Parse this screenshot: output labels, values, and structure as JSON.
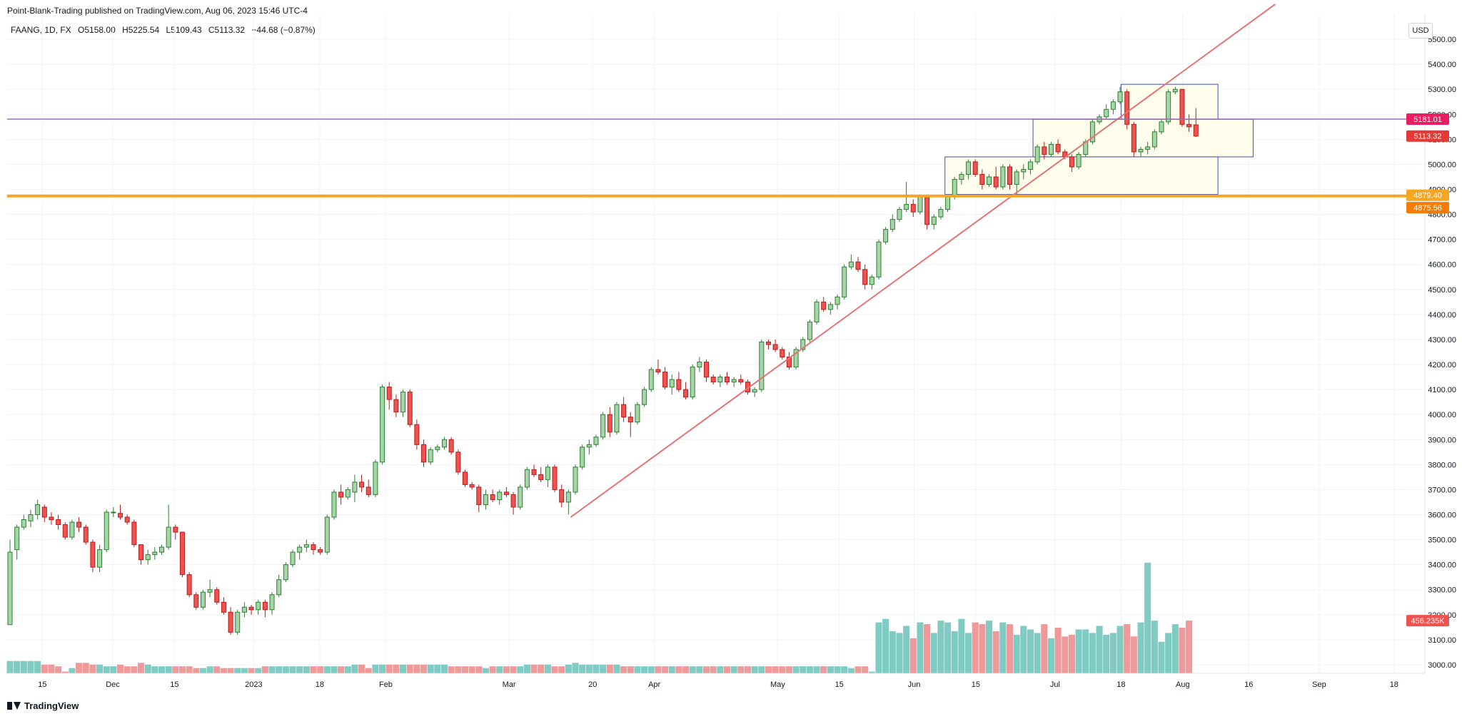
{
  "header": {
    "publisher_text": "Point-Blank-Trading published on TradingView.com, Aug 06, 2023 15:46 UTC-4"
  },
  "symbol": {
    "name": "FAANG, 1D, FX",
    "open": "O5158.00",
    "high": "H5225.54",
    "low": "L5109.43",
    "close": "C5113.32",
    "change": "−44.68 (−0.87%)"
  },
  "currency_label": "USD",
  "footer": {
    "brand": "TradingView"
  },
  "colors": {
    "up": "#2e7d32",
    "up_fill": "#a5d6a7",
    "down": "#b71c1c",
    "down_fill": "#ef5350",
    "vol_up": "#80cbc4",
    "vol_down": "#ef9a9a",
    "orange": "#f5a623",
    "purple": "#9c6fb5",
    "trendline": "#e57373",
    "box_border": "#3f51b5",
    "box_fill": "#fffde7"
  },
  "chart_data": {
    "type": "candlestick",
    "y_axis": {
      "range": [
        2920,
        5600
      ],
      "ticks": [
        "3000.00",
        "3100.00",
        "3200.00",
        "3300.00",
        "3400.00",
        "3500.00",
        "3600.00",
        "3700.00",
        "3800.00",
        "3900.00",
        "4000.00",
        "4100.00",
        "4200.00",
        "4300.00",
        "4400.00",
        "4500.00",
        "4600.00",
        "4700.00",
        "4800.00",
        "4900.00",
        "5000.00",
        "5100.00",
        "5200.00",
        "5300.00",
        "5400.00",
        "5500.00"
      ]
    },
    "x_axis": {
      "start": "2022-11-07",
      "end": "2023-09-25",
      "ticks": [
        {
          "date": "2022-11-15",
          "label": "15"
        },
        {
          "date": "2022-12-01",
          "label": "Dec"
        },
        {
          "date": "2022-12-15",
          "label": "15"
        },
        {
          "date": "2023-01-02",
          "label": "2023"
        },
        {
          "date": "2023-01-17",
          "label": "18"
        },
        {
          "date": "2023-02-01",
          "label": "Feb"
        },
        {
          "date": "2023-03-01",
          "label": "Mar"
        },
        {
          "date": "2023-03-20",
          "label": "20"
        },
        {
          "date": "2023-04-03",
          "label": "Apr"
        },
        {
          "date": "2023-05-01",
          "label": "May"
        },
        {
          "date": "2023-05-15",
          "label": "15"
        },
        {
          "date": "2023-06-01",
          "label": "Jun"
        },
        {
          "date": "2023-06-15",
          "label": "15"
        },
        {
          "date": "2023-07-03",
          "label": "Jul"
        },
        {
          "date": "2023-07-18",
          "label": "18"
        },
        {
          "date": "2023-08-01",
          "label": "Aug"
        },
        {
          "date": "2023-08-16",
          "label": "16"
        },
        {
          "date": "2023-09-01",
          "label": "Sep"
        },
        {
          "date": "2023-09-18",
          "label": "18"
        }
      ]
    },
    "candles_ohlc": [
      [
        3160,
        3500,
        3160,
        3450
      ],
      [
        3460,
        3560,
        3420,
        3550
      ],
      [
        3550,
        3600,
        3540,
        3580
      ],
      [
        3575,
        3620,
        3550,
        3600
      ],
      [
        3600,
        3660,
        3580,
        3640
      ],
      [
        3630,
        3640,
        3570,
        3590
      ],
      [
        3590,
        3610,
        3560,
        3580
      ],
      [
        3580,
        3600,
        3540,
        3560
      ],
      [
        3560,
        3570,
        3500,
        3510
      ],
      [
        3510,
        3580,
        3500,
        3570
      ],
      [
        3570,
        3590,
        3530,
        3550
      ],
      [
        3550,
        3560,
        3480,
        3490
      ],
      [
        3490,
        3500,
        3370,
        3390
      ],
      [
        3390,
        3480,
        3370,
        3460
      ],
      [
        3460,
        3620,
        3450,
        3610
      ],
      [
        3610,
        3630,
        3590,
        3610
      ],
      [
        3605,
        3640,
        3580,
        3590
      ],
      [
        3590,
        3600,
        3560,
        3570
      ],
      [
        3570,
        3580,
        3470,
        3480
      ],
      [
        3480,
        3480,
        3400,
        3420
      ],
      [
        3420,
        3460,
        3400,
        3440
      ],
      [
        3440,
        3470,
        3420,
        3450
      ],
      [
        3450,
        3480,
        3440,
        3470
      ],
      [
        3470,
        3640,
        3460,
        3550
      ],
      [
        3550,
        3560,
        3500,
        3530
      ],
      [
        3530,
        3530,
        3350,
        3360
      ],
      [
        3360,
        3370,
        3270,
        3280
      ],
      [
        3280,
        3290,
        3220,
        3230
      ],
      [
        3230,
        3300,
        3220,
        3290
      ],
      [
        3290,
        3340,
        3270,
        3300
      ],
      [
        3300,
        3310,
        3240,
        3250
      ],
      [
        3250,
        3270,
        3200,
        3210
      ],
      [
        3210,
        3230,
        3120,
        3130
      ],
      [
        3130,
        3220,
        3120,
        3210
      ],
      [
        3210,
        3250,
        3190,
        3230
      ],
      [
        3230,
        3240,
        3200,
        3220
      ],
      [
        3220,
        3260,
        3200,
        3250
      ],
      [
        3250,
        3260,
        3190,
        3220
      ],
      [
        3220,
        3290,
        3200,
        3280
      ],
      [
        3280,
        3360,
        3270,
        3340
      ],
      [
        3340,
        3410,
        3330,
        3400
      ],
      [
        3400,
        3460,
        3390,
        3450
      ],
      [
        3450,
        3480,
        3420,
        3470
      ],
      [
        3470,
        3500,
        3450,
        3480
      ],
      [
        3480,
        3490,
        3440,
        3460
      ],
      [
        3460,
        3470,
        3440,
        3450
      ],
      [
        3450,
        3600,
        3440,
        3590
      ],
      [
        3590,
        3700,
        3580,
        3690
      ],
      [
        3690,
        3720,
        3640,
        3670
      ],
      [
        3670,
        3710,
        3660,
        3700
      ],
      [
        3690,
        3760,
        3650,
        3730
      ],
      [
        3730,
        3760,
        3690,
        3710
      ],
      [
        3710,
        3740,
        3670,
        3680
      ],
      [
        3680,
        3820,
        3670,
        3810
      ],
      [
        3810,
        4120,
        3800,
        4110
      ],
      [
        4110,
        4130,
        4020,
        4060
      ],
      [
        4060,
        4080,
        3990,
        4010
      ],
      [
        4010,
        4100,
        3990,
        4090
      ],
      [
        4090,
        4100,
        3950,
        3960
      ],
      [
        3960,
        3980,
        3860,
        3880
      ],
      [
        3880,
        3900,
        3790,
        3810
      ],
      [
        3810,
        3870,
        3800,
        3860
      ],
      [
        3860,
        3880,
        3850,
        3870
      ],
      [
        3870,
        3910,
        3860,
        3900
      ],
      [
        3900,
        3910,
        3840,
        3850
      ],
      [
        3850,
        3860,
        3760,
        3770
      ],
      [
        3770,
        3780,
        3710,
        3720
      ],
      [
        3720,
        3730,
        3700,
        3710
      ],
      [
        3710,
        3720,
        3610,
        3640
      ],
      [
        3640,
        3700,
        3620,
        3680
      ],
      [
        3680,
        3700,
        3650,
        3660
      ],
      [
        3660,
        3700,
        3640,
        3690
      ],
      [
        3690,
        3710,
        3670,
        3680
      ],
      [
        3680,
        3690,
        3600,
        3630
      ],
      [
        3630,
        3720,
        3620,
        3710
      ],
      [
        3710,
        3790,
        3700,
        3780
      ],
      [
        3780,
        3800,
        3750,
        3760
      ],
      [
        3760,
        3790,
        3730,
        3740
      ],
      [
        3740,
        3800,
        3710,
        3790
      ],
      [
        3790,
        3800,
        3690,
        3700
      ],
      [
        3700,
        3720,
        3630,
        3650
      ],
      [
        3650,
        3700,
        3600,
        3690
      ],
      [
        3690,
        3800,
        3680,
        3790
      ],
      [
        3790,
        3880,
        3780,
        3870
      ],
      [
        3870,
        3900,
        3840,
        3880
      ],
      [
        3880,
        3920,
        3870,
        3910
      ],
      [
        3910,
        4010,
        3900,
        4000
      ],
      [
        4000,
        4030,
        3910,
        3930
      ],
      [
        3930,
        4050,
        3920,
        4040
      ],
      [
        4040,
        4070,
        3970,
        3990
      ],
      [
        3990,
        4010,
        3910,
        3970
      ],
      [
        3970,
        4050,
        3960,
        4040
      ],
      [
        4040,
        4110,
        4030,
        4100
      ],
      [
        4100,
        4190,
        4090,
        4180
      ],
      [
        4180,
        4220,
        4160,
        4170
      ],
      [
        4170,
        4190,
        4100,
        4110
      ],
      [
        4110,
        4160,
        4080,
        4140
      ],
      [
        4140,
        4170,
        4090,
        4100
      ],
      [
        4100,
        4130,
        4060,
        4070
      ],
      [
        4070,
        4200,
        4060,
        4190
      ],
      [
        4190,
        4230,
        4170,
        4210
      ],
      [
        4210,
        4220,
        4130,
        4150
      ],
      [
        4150,
        4160,
        4120,
        4130
      ],
      [
        4130,
        4160,
        4110,
        4150
      ],
      [
        4150,
        4170,
        4120,
        4130
      ],
      [
        4130,
        4150,
        4110,
        4140
      ],
      [
        4140,
        4160,
        4120,
        4130
      ],
      [
        4130,
        4140,
        4080,
        4090
      ],
      [
        4090,
        4110,
        4070,
        4100
      ],
      [
        4100,
        4300,
        4090,
        4290
      ],
      [
        4290,
        4300,
        4260,
        4280
      ],
      [
        4280,
        4300,
        4250,
        4260
      ],
      [
        4260,
        4270,
        4220,
        4230
      ],
      [
        4230,
        4250,
        4180,
        4190
      ],
      [
        4190,
        4270,
        4180,
        4260
      ],
      [
        4260,
        4310,
        4250,
        4300
      ],
      [
        4300,
        4380,
        4290,
        4370
      ],
      [
        4370,
        4460,
        4360,
        4450
      ],
      [
        4450,
        4470,
        4410,
        4420
      ],
      [
        4420,
        4450,
        4400,
        4440
      ],
      [
        4440,
        4480,
        4420,
        4470
      ],
      [
        4470,
        4600,
        4460,
        4590
      ],
      [
        4590,
        4640,
        4580,
        4610
      ],
      [
        4610,
        4630,
        4570,
        4580
      ],
      [
        4580,
        4600,
        4500,
        4520
      ],
      [
        4520,
        4560,
        4500,
        4550
      ],
      [
        4550,
        4700,
        4540,
        4690
      ],
      [
        4690,
        4750,
        4680,
        4740
      ],
      [
        4740,
        4800,
        4730,
        4780
      ],
      [
        4780,
        4830,
        4770,
        4820
      ],
      [
        4820,
        4930,
        4810,
        4840
      ],
      [
        4840,
        4860,
        4790,
        4810
      ],
      [
        4810,
        4880,
        4800,
        4870
      ],
      [
        4870,
        4880,
        4740,
        4760
      ],
      [
        4760,
        4800,
        4740,
        4790
      ],
      [
        4790,
        4830,
        4780,
        4820
      ],
      [
        4820,
        4880,
        4810,
        4870
      ],
      [
        4870,
        4950,
        4860,
        4940
      ],
      [
        4940,
        4970,
        4920,
        4960
      ],
      [
        4960,
        5020,
        4940,
        5010
      ],
      [
        5010,
        5020,
        4950,
        4960
      ],
      [
        4960,
        4980,
        4900,
        4920
      ],
      [
        4920,
        4960,
        4910,
        4950
      ],
      [
        4950,
        4990,
        4900,
        4910
      ],
      [
        4910,
        5000,
        4900,
        4990
      ],
      [
        4990,
        5000,
        4900,
        4920
      ],
      [
        4920,
        4980,
        4880,
        4970
      ],
      [
        4970,
        5000,
        4940,
        4980
      ],
      [
        4980,
        5020,
        4960,
        5010
      ],
      [
        5010,
        5080,
        5000,
        5070
      ],
      [
        5070,
        5090,
        5020,
        5040
      ],
      [
        5040,
        5090,
        5030,
        5080
      ],
      [
        5080,
        5100,
        5040,
        5050
      ],
      [
        5050,
        5060,
        5020,
        5030
      ],
      [
        5030,
        5040,
        4970,
        4990
      ],
      [
        4990,
        5050,
        4980,
        5040
      ],
      [
        5040,
        5100,
        5030,
        5090
      ],
      [
        5090,
        5180,
        5080,
        5170
      ],
      [
        5170,
        5200,
        5160,
        5190
      ],
      [
        5190,
        5240,
        5180,
        5220
      ],
      [
        5220,
        5260,
        5200,
        5250
      ],
      [
        5250,
        5310,
        5240,
        5290
      ],
      [
        5290,
        5300,
        5140,
        5160
      ],
      [
        5160,
        5170,
        5030,
        5050
      ],
      [
        5050,
        5070,
        5030,
        5060
      ],
      [
        5060,
        5090,
        5040,
        5070
      ],
      [
        5070,
        5140,
        5060,
        5130
      ],
      [
        5130,
        5180,
        5120,
        5170
      ],
      [
        5170,
        5300,
        5160,
        5290
      ],
      [
        5290,
        5310,
        5280,
        5300
      ],
      [
        5300,
        5300,
        5150,
        5160
      ],
      [
        5160,
        5200,
        5130,
        5150
      ],
      [
        5158,
        5225,
        5109,
        5113
      ]
    ],
    "volume": {
      "range": [
        2950,
        3900
      ],
      "values": [
        3020,
        3020,
        3020,
        3020,
        3020,
        3000,
        3000,
        2990,
        2960,
        2980,
        3010,
        3010,
        3000,
        3000,
        2990,
        2990,
        3000,
        2990,
        2990,
        3010,
        3000,
        2990,
        2990,
        2990,
        2990,
        2990,
        2990,
        2980,
        2980,
        2990,
        2990,
        2980,
        2980,
        2980,
        2980,
        2980,
        2980,
        2990,
        2990,
        2990,
        2990,
        2990,
        2990,
        2990,
        2990,
        2990,
        2990,
        2990,
        2990,
        2990,
        3000,
        3000,
        2980,
        3000,
        3000,
        3000,
        3000,
        3000,
        3000,
        3000,
        3000,
        3000,
        3000,
        3000,
        2990,
        2990,
        2990,
        2990,
        2990,
        2980,
        2990,
        2990,
        2990,
        2990,
        2990,
        3000,
        3000,
        3000,
        3000,
        2990,
        2990,
        3000,
        3010,
        3000,
        3000,
        3000,
        3000,
        3000,
        3000,
        2990,
        2990,
        2990,
        2990,
        2990,
        2990,
        2990,
        2990,
        2990,
        2990,
        2990,
        2990,
        2990,
        2990,
        2990,
        2990,
        2990,
        2990,
        2990,
        2990,
        2990,
        2990,
        2990,
        2990,
        2990,
        2990,
        2990,
        2990,
        2990,
        2990,
        2990,
        2990,
        2990,
        2980,
        2990,
        2990,
        2960,
        3240,
        3260,
        3190,
        3180,
        3220,
        3150,
        3240,
        3230,
        3180,
        3250,
        3240,
        3190,
        3260,
        3180,
        3240,
        3230,
        3250,
        3190,
        3240,
        3230,
        3170,
        3220,
        3200,
        3180,
        3230,
        3150,
        3210,
        3160,
        3170,
        3200,
        3200,
        3180,
        3220,
        3170,
        3180,
        3220,
        3230,
        3160,
        3240,
        3580,
        3250,
        3130,
        3180,
        3230,
        3210,
        3250
      ],
      "last_label": "456.235K"
    },
    "trendline": {
      "from": [
        "2023-03-15",
        3590
      ],
      "to": [
        "2023-08-22",
        5640
      ]
    },
    "horizontal_levels": [
      {
        "price": 5181.01,
        "label": "5181.01",
        "color": "purple"
      },
      {
        "price": 4879.4,
        "label": "4879.40",
        "color": "orange"
      },
      {
        "price": 4875.56,
        "label": "4875.56",
        "color": "orange"
      }
    ],
    "last_price": {
      "price": 5113.32,
      "label": "5113.32"
    },
    "rectangles": [
      {
        "from": "2023-07-18",
        "to": "2023-08-09",
        "top": 5320,
        "bottom": 5180
      },
      {
        "from": "2023-06-28",
        "to": "2023-08-17",
        "top": 5180,
        "bottom": 5030
      },
      {
        "from": "2023-06-08",
        "to": "2023-08-09",
        "top": 5030,
        "bottom": 4880
      }
    ]
  }
}
